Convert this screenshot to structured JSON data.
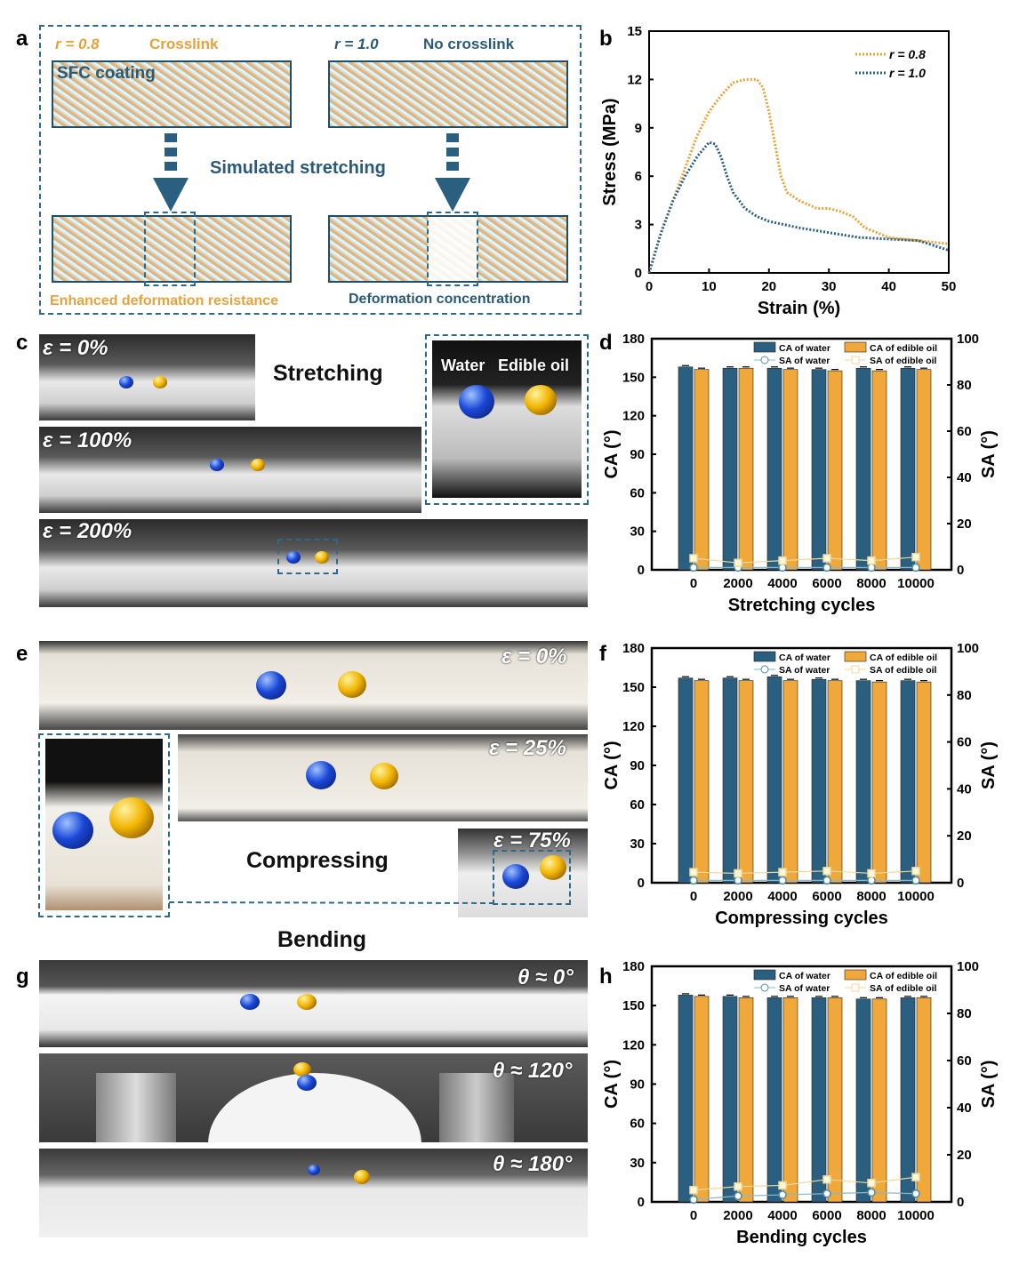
{
  "panel_labels": {
    "a": "a",
    "b": "b",
    "c": "c",
    "d": "d",
    "e": "e",
    "f": "f",
    "g": "g",
    "h": "h"
  },
  "panel_a": {
    "left_r": "r = 0.8",
    "left_state": "Crosslink",
    "right_r": "r = 1.0",
    "right_state": "No crosslink",
    "coating_label": "SFC coating",
    "process": "Simulated stretching",
    "left_result": "Enhanced deformation resistance",
    "right_result": "Deformation concentration",
    "colors": {
      "orange": "#e8a23a",
      "blue": "#2a5a78"
    }
  },
  "panel_c": {
    "title": "Stretching",
    "strains": [
      "ε = 0%",
      "ε = 100%",
      "ε = 200%"
    ],
    "inset_water": "Water",
    "inset_oil": "Edible oil"
  },
  "panel_e": {
    "title": "Compressing",
    "strains": [
      "ε = 0%",
      "ε = 25%",
      "ε = 75%"
    ]
  },
  "panel_g": {
    "title": "Bending",
    "angles": [
      "θ ≈ 0°",
      "θ ≈ 120°",
      "θ ≈ 180°"
    ]
  },
  "chart_data": [
    {
      "id": "b",
      "type": "line",
      "xlabel": "Strain (%)",
      "ylabel": "Stress (MPa)",
      "xlim": [
        0,
        50
      ],
      "ylim": [
        0,
        15
      ],
      "xticks": [
        0,
        10,
        20,
        30,
        40,
        50
      ],
      "yticks": [
        0,
        3,
        6,
        9,
        12,
        15
      ],
      "legend": "top-right",
      "series": [
        {
          "name": "r = 0.8",
          "color": "#e8a23a",
          "x": [
            0,
            2,
            4,
            6,
            8,
            10,
            12,
            14,
            16,
            18,
            19,
            20,
            21,
            22,
            23,
            25,
            28,
            30,
            32,
            34,
            36,
            38,
            40,
            45,
            50
          ],
          "y": [
            0,
            2.5,
            4.5,
            6.5,
            8.5,
            10,
            11,
            11.8,
            12,
            12,
            11.5,
            10,
            8,
            6,
            5,
            4.5,
            4,
            4,
            3.8,
            3.5,
            2.8,
            2.5,
            2.2,
            2,
            1.8
          ]
        },
        {
          "name": "r = 1.0",
          "color": "#2a5f80",
          "x": [
            0,
            2,
            4,
            6,
            8,
            10,
            11,
            12,
            13,
            14,
            16,
            18,
            20,
            25,
            30,
            35,
            40,
            45,
            50
          ],
          "y": [
            0,
            2.5,
            4.5,
            6,
            7.2,
            8.1,
            8,
            7.2,
            6,
            5,
            4,
            3.5,
            3.2,
            2.8,
            2.5,
            2.2,
            2.1,
            2,
            1.4
          ]
        }
      ]
    },
    {
      "id": "d",
      "type": "bar",
      "xlabel": "Stretching cycles",
      "ylabel": "CA (°)",
      "y2label": "SA (°)",
      "ylim": [
        0,
        180
      ],
      "y2lim": [
        0,
        100
      ],
      "categories": [
        "0",
        "2000",
        "4000",
        "6000",
        "8000",
        "10000"
      ],
      "yticks": [
        0,
        30,
        60,
        90,
        120,
        150,
        180
      ],
      "y2ticks": [
        0,
        20,
        40,
        60,
        80,
        100
      ],
      "legend": "top-right",
      "series": [
        {
          "name": "CA of water",
          "color": "#2a5f80",
          "values": [
            158,
            157,
            157,
            156,
            157,
            157
          ]
        },
        {
          "name": "CA of edible oil",
          "color": "#f0a83a",
          "values": [
            156,
            157,
            156,
            155,
            155,
            156
          ]
        }
      ],
      "lines": [
        {
          "name": "SA of water",
          "color": "#8ab8c8",
          "values": [
            1,
            1,
            1,
            1,
            1,
            1
          ]
        },
        {
          "name": "SA of edible oil",
          "color": "#f0d89a",
          "values": [
            5,
            3,
            4,
            5,
            4,
            5.5
          ]
        }
      ]
    },
    {
      "id": "f",
      "type": "bar",
      "xlabel": "Compressing cycles",
      "ylabel": "CA (°)",
      "y2label": "SA (°)",
      "ylim": [
        0,
        180
      ],
      "y2lim": [
        0,
        100
      ],
      "categories": [
        "0",
        "2000",
        "4000",
        "6000",
        "8000",
        "10000"
      ],
      "yticks": [
        0,
        30,
        60,
        90,
        120,
        150,
        180
      ],
      "y2ticks": [
        0,
        20,
        40,
        60,
        80,
        100
      ],
      "legend": "top-right",
      "series": [
        {
          "name": "CA of water",
          "color": "#2a5f80",
          "values": [
            157,
            157,
            158,
            156,
            155,
            155
          ]
        },
        {
          "name": "CA of edible oil",
          "color": "#f0a83a",
          "values": [
            155,
            155,
            155,
            155,
            154,
            154
          ]
        }
      ],
      "lines": [
        {
          "name": "SA of water",
          "color": "#8ab8c8",
          "values": [
            1,
            1,
            1,
            1,
            1,
            1
          ]
        },
        {
          "name": "SA of edible oil",
          "color": "#f0d89a",
          "values": [
            4.5,
            4,
            4.5,
            5,
            4,
            5
          ]
        }
      ]
    },
    {
      "id": "h",
      "type": "bar",
      "xlabel": "Bending cycles",
      "ylabel": "CA (°)",
      "y2label": "SA (°)",
      "ylim": [
        0,
        180
      ],
      "y2lim": [
        0,
        100
      ],
      "categories": [
        "0",
        "2000",
        "4000",
        "6000",
        "8000",
        "10000"
      ],
      "yticks": [
        0,
        30,
        60,
        90,
        120,
        150,
        180
      ],
      "y2ticks": [
        0,
        20,
        40,
        60,
        80,
        100
      ],
      "legend": "top-right",
      "series": [
        {
          "name": "CA of water",
          "color": "#2a5f80",
          "values": [
            158,
            157,
            156,
            156,
            155,
            156
          ]
        },
        {
          "name": "CA of edible oil",
          "color": "#f0a83a",
          "values": [
            157,
            156,
            156,
            156,
            155,
            156
          ]
        }
      ],
      "lines": [
        {
          "name": "SA of water",
          "color": "#8ab8c8",
          "values": [
            1,
            2.5,
            3,
            3.5,
            4,
            3.5
          ]
        },
        {
          "name": "SA of edible oil",
          "color": "#f0d89a",
          "values": [
            5,
            6.5,
            7,
            9.5,
            8,
            10.5
          ]
        }
      ]
    }
  ]
}
